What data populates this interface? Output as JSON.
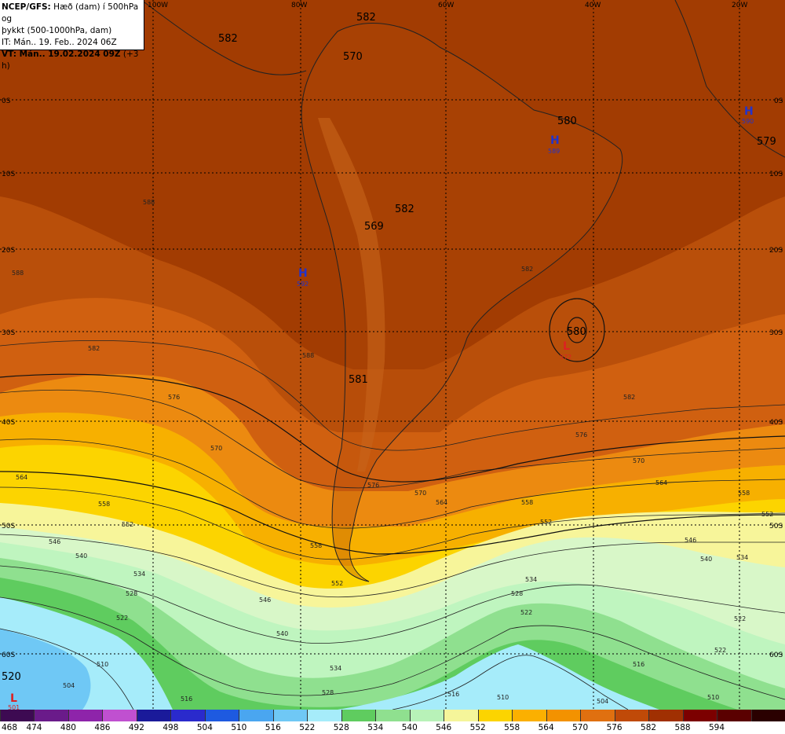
{
  "header": {
    "line1_bold": "NCEP/GFS:",
    "line1_rest": " Hæð (dam) í 500hPa og",
    "line2": "þykkt (500-1000hPa, dam)",
    "line3": "IT: Mán.. 19. Feb.. 2024 06Z",
    "line4_bold": "VT: Mán.. 19.02.2024 09Z",
    "line4_rest": " (+3 h)"
  },
  "longitude_labels": [
    "100W",
    "80W",
    "60W",
    "40W",
    "20W"
  ],
  "latitude_labels": [
    "0S",
    "10S",
    "20S",
    "30S",
    "40S",
    "50S",
    "60S"
  ],
  "height_labels": [
    "582",
    "582",
    "570",
    "580",
    "579",
    "582",
    "569",
    "580",
    "581",
    "520"
  ],
  "pressure_centers": [
    {
      "type": "H",
      "value": "592",
      "color": "#2233cc"
    },
    {
      "type": "H",
      "value": "589",
      "color": "#2233cc"
    },
    {
      "type": "H",
      "value": "590",
      "color": "#2233cc"
    },
    {
      "type": "L",
      "value": "572",
      "color": "#dd2222"
    },
    {
      "type": "L",
      "value": "501",
      "color": "#dd2222"
    }
  ],
  "thickness_contour_labels": [
    "588",
    "582",
    "576",
    "570",
    "564",
    "558",
    "552",
    "546",
    "540",
    "534",
    "528",
    "522",
    "516",
    "510",
    "504"
  ],
  "colorbar": {
    "labels": [
      "468",
      "474",
      "480",
      "486",
      "492",
      "498",
      "504",
      "510",
      "516",
      "522",
      "528",
      "534",
      "540",
      "546",
      "552",
      "558",
      "564",
      "570",
      "576",
      "582",
      "588",
      "594"
    ],
    "colors": [
      "#3d0a52",
      "#6a1b8a",
      "#8e24aa",
      "#c050d0",
      "#1a1a9a",
      "#2a2acc",
      "#1e5ae0",
      "#4aa6f0",
      "#6fc8f5",
      "#a6ecfa",
      "#5fcc5f",
      "#8fe08f",
      "#b8f2b8",
      "#f5f59a",
      "#fcd400",
      "#fbb000",
      "#f39200",
      "#e07010",
      "#c04a08",
      "#a03002",
      "#7c0000",
      "#5a0000",
      "#2a0000"
    ]
  },
  "colors": {
    "band_596": "#a03a00",
    "band_588": "#b84800",
    "band_582": "#d06010",
    "band_576": "#ec8a10",
    "band_570": "#f7b000",
    "band_564": "#fcd400",
    "band_558": "#f7f59a",
    "band_546": "#bff5bf",
    "band_534": "#5fcc5f",
    "band_522": "#a6ecfa",
    "band_516": "#6fc8f5"
  }
}
